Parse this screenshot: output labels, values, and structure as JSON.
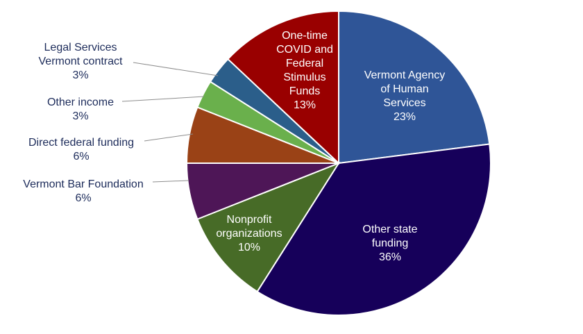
{
  "chart_data": {
    "type": "pie",
    "title": "",
    "slices": [
      {
        "label": "Vermont Agency of Human Services",
        "value": 23,
        "value_label": "23%",
        "color": "#2f5597"
      },
      {
        "label": "Other state funding",
        "value": 36,
        "value_label": "36%",
        "color": "#16005a"
      },
      {
        "label": "Nonprofit organizations",
        "value": 10,
        "value_label": "10%",
        "color": "#476b27"
      },
      {
        "label": "Vermont Bar Foundation",
        "value": 6,
        "value_label": "6%",
        "color": "#4e1657"
      },
      {
        "label": "Direct federal funding",
        "value": 6,
        "value_label": "6%",
        "color": "#9a4216"
      },
      {
        "label": "Other income",
        "value": 3,
        "value_label": "3%",
        "color": "#6ab04c"
      },
      {
        "label": "Legal Services Vermont contract",
        "value": 3,
        "value_label": "3%",
        "color": "#2b5e8a"
      },
      {
        "label": "One-time COVID and Federal Stimulus Funds",
        "value": 13,
        "value_label": "13%",
        "color": "#990000"
      }
    ]
  }
}
